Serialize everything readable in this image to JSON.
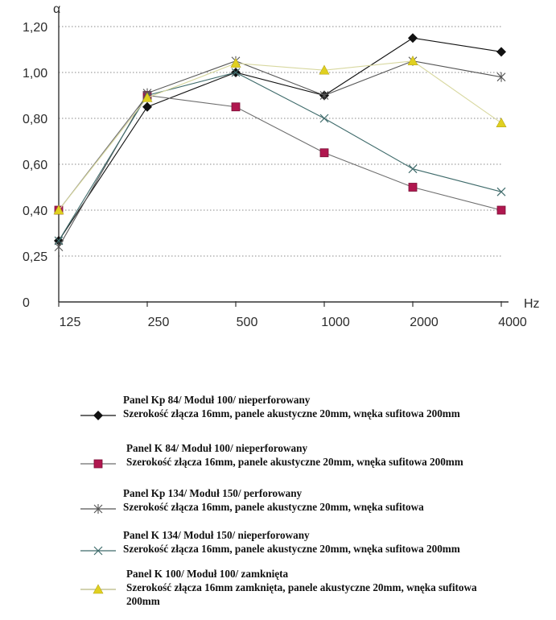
{
  "chart_data": {
    "type": "line",
    "ylabel": "α",
    "xlabel": "Hz",
    "x_tick_labels": [
      "125",
      "250",
      "500",
      "1000",
      "2000",
      "4000"
    ],
    "y_tick_labels": [
      "0",
      "0,25",
      "0,40",
      "0,60",
      "0,80",
      "1,00",
      "1,20"
    ],
    "y_ticks": [
      0,
      0.25,
      0.4,
      0.6,
      0.8,
      1.0,
      1.2
    ],
    "ylim": [
      0,
      1.2
    ],
    "grid": "horizontal dotted",
    "legend_placement": "bottom",
    "series": [
      {
        "name": "Panel Kp 84/ Moduł 100/ nieperforowany",
        "description": "Szerokość złącza 16mm, panele akustyczne 20mm, wnęka sufitowa 200mm",
        "marker": "diamond",
        "color": "#111111",
        "marker_color": "#111111",
        "values": [
          0.3,
          0.85,
          1.0,
          0.9,
          1.15,
          1.09
        ]
      },
      {
        "name": "Panel K 84/ Moduł 100/ nieperforowany",
        "description": "Szerokość złącza 16mm, panele akustyczne 20mm, wnęka sufitowa 200mm",
        "marker": "square",
        "color": "#6e6e6e",
        "marker_color": "#b0174f",
        "values": [
          0.4,
          0.9,
          0.85,
          0.65,
          0.5,
          0.4
        ]
      },
      {
        "name": "Panel Kp 134/ Moduł 150/ perforowany",
        "description": "Szerokość złącza 16mm, panele akustyczne 20mm, wnęka sufitowa",
        "marker": "star",
        "color": "#555555",
        "marker_color": "#555555",
        "values": [
          0.28,
          0.91,
          1.05,
          0.9,
          1.05,
          0.98
        ]
      },
      {
        "name": "Panel K 134/ Moduł 150/ nieperforowany",
        "description": "Szerokość złącza 16mm, panele akustyczne 20mm, wnęka sufitowa 200mm",
        "marker": "x",
        "color": "#3f6b6b",
        "marker_color": "#3f6b6b",
        "values": [
          0.3,
          0.9,
          1.0,
          0.8,
          0.58,
          0.48
        ]
      },
      {
        "name": "Panel K 100/ Moduł 100/ zamknięta",
        "description": "Szerokość złącza 16mm zamknięta, panele akustyczne 20mm, wnęka sufitowa 200mm",
        "marker": "triangle",
        "color": "#d8d8a0",
        "marker_color": "#e0d020",
        "values": [
          0.4,
          0.89,
          1.04,
          1.01,
          1.05,
          0.78
        ]
      }
    ]
  }
}
